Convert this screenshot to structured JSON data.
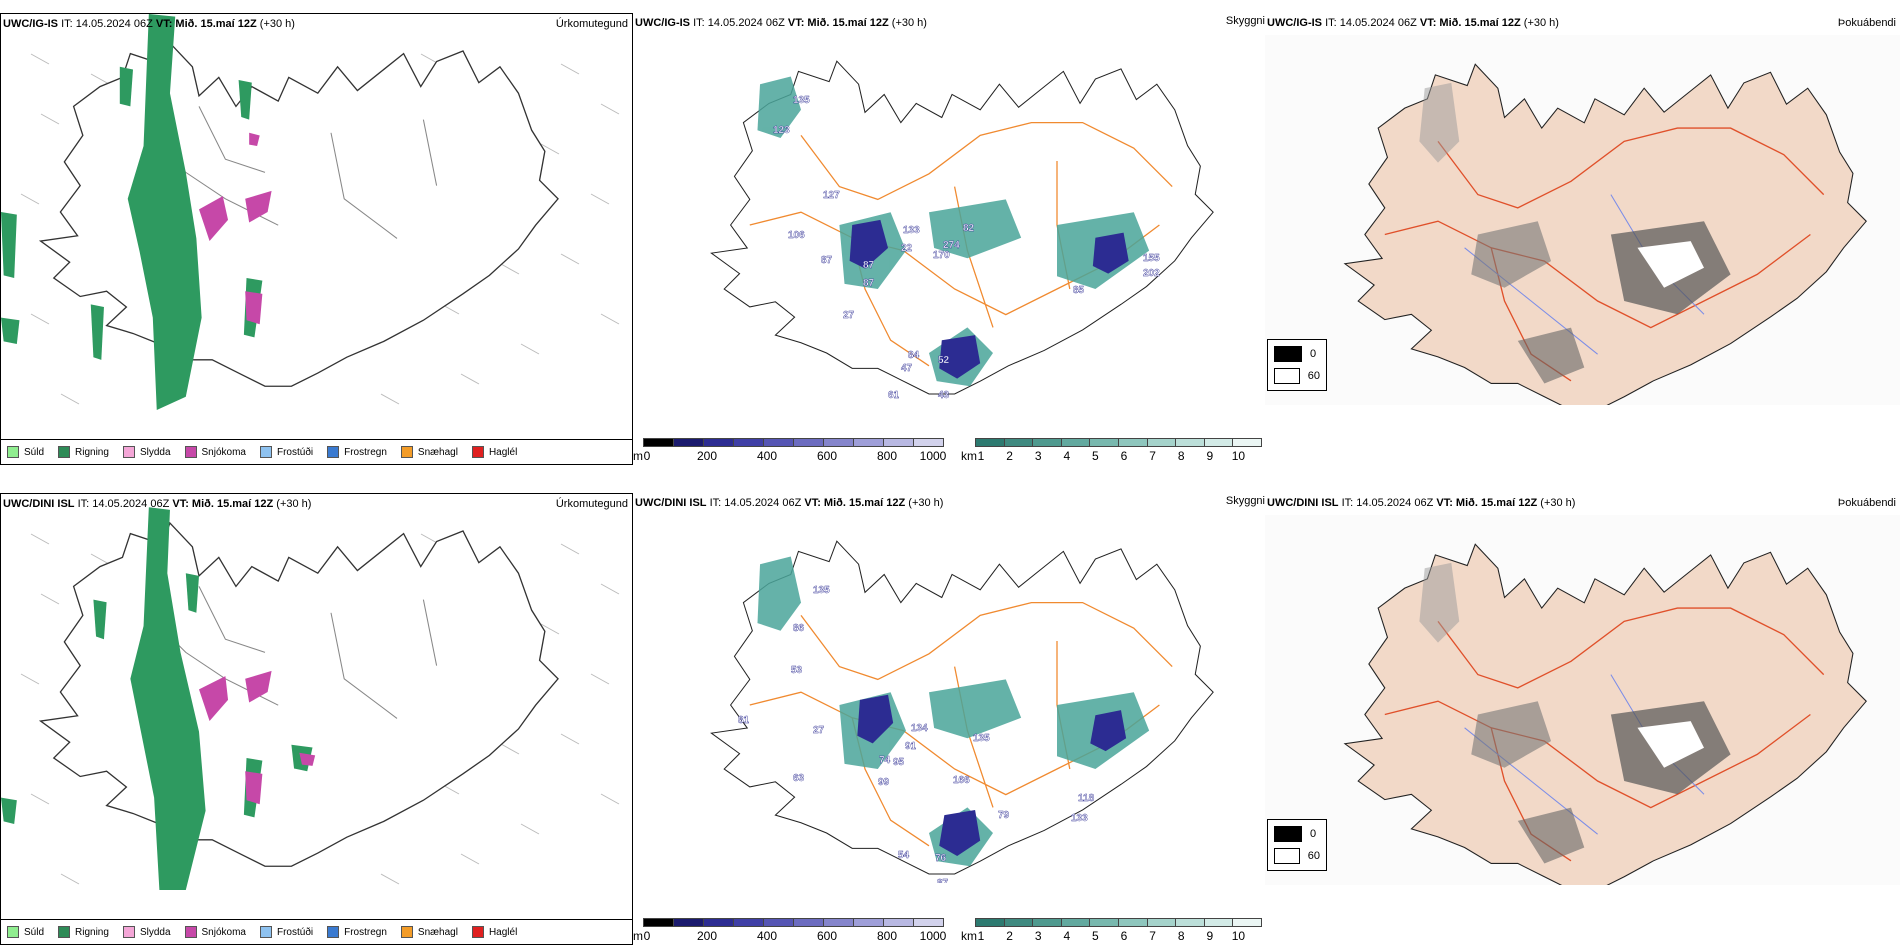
{
  "colors": {
    "land_fog": "#f2d9c8",
    "roads_orange": "#f08a30",
    "roads_red": "#e0502a",
    "rivers_blue": "#7b8de8",
    "precip_green": "#2e9a60",
    "precip_magenta": "#c648a8",
    "vis_teal": "#4aa59a",
    "vis_navy": "#2c2c92"
  },
  "rows": [
    {
      "left": {
        "model": "UWC/IG-IS",
        "it_text": "IT: 14.05.2024 06Z",
        "vt_label": "VT:",
        "vt_value": "Mið. 15.maí 12Z",
        "lead": "(+30 h)",
        "panel_type": "Úrkomutegund"
      },
      "middle": {
        "model": "UWC/IG-IS",
        "it_text": "IT: 14.05.2024 06Z",
        "vt_label": "VT:",
        "vt_value": "Mið. 15.maí 12Z",
        "lead": "(+30 h)",
        "panel_type": "Skyggni",
        "labels": [
          "135",
          "123",
          "127",
          "106",
          "87",
          "133",
          "22",
          "87",
          "87",
          "170",
          "274",
          "82",
          "202",
          "155",
          "85",
          "84",
          "52",
          "47",
          "61",
          "43",
          "27"
        ]
      },
      "right": {
        "model": "UWC/IG-IS",
        "it_text": "IT: 14.05.2024 06Z",
        "vt_label": "VT:",
        "vt_value": "Mið. 15.maí 12Z",
        "lead": "(+30 h)",
        "panel_type": "Þokuábendi"
      }
    },
    {
      "left": {
        "model": "UWC/DINI ISL",
        "it_text": "IT: 14.05.2024 06Z",
        "vt_label": "VT:",
        "vt_value": "Mið. 15.maí 12Z",
        "lead": "(+30 h)",
        "panel_type": "Úrkomutegund"
      },
      "middle": {
        "model": "UWC/DINI ISL",
        "it_text": "IT: 14.05.2024 06Z",
        "vt_label": "VT:",
        "vt_value": "Mið. 15.maí 12Z",
        "lead": "(+30 h)",
        "panel_type": "Skyggni",
        "labels": [
          "135",
          "86",
          "53",
          "81",
          "27",
          "63",
          "134",
          "91",
          "74",
          "95",
          "99",
          "135",
          "166",
          "79",
          "118",
          "133",
          "54",
          "76",
          "87",
          "59"
        ]
      },
      "right": {
        "model": "UWC/DINI ISL",
        "it_text": "IT: 14.05.2024 06Z",
        "vt_label": "VT:",
        "vt_value": "Mið. 15.maí 12Z",
        "lead": "(+30 h)",
        "panel_type": "Þokuábendi"
      }
    }
  ],
  "precip_legend": [
    {
      "label": "Súld",
      "color": "#90ee90"
    },
    {
      "label": "Rigning",
      "color": "#2e8b57"
    },
    {
      "label": "Slydda",
      "color": "#f4a6d7"
    },
    {
      "label": "Snjókoma",
      "color": "#c648a8"
    },
    {
      "label": "Frostúði",
      "color": "#8ec2f0"
    },
    {
      "label": "Frostregn",
      "color": "#3a7ad0"
    },
    {
      "label": "Snæhagl",
      "color": "#f39c28"
    },
    {
      "label": "Haglél",
      "color": "#e02020"
    }
  ],
  "cloud_base_scale": {
    "unit": "m",
    "ticks": [
      "0",
      "200",
      "400",
      "600",
      "800",
      "1000"
    ],
    "colors": [
      "#000000",
      "#1a1a6e",
      "#2c2c92",
      "#3f3fa6",
      "#5555b4",
      "#6c6cc0",
      "#8585cc",
      "#9e9ed8",
      "#b8b8e2",
      "#d2d2ec"
    ]
  },
  "visibility_scale": {
    "unit": "km",
    "ticks": [
      "1",
      "2",
      "3",
      "4",
      "5",
      "6",
      "7",
      "8",
      "9",
      "10"
    ],
    "colors": [
      "#2d7a70",
      "#3f8a80",
      "#4f9a8f",
      "#62a99f",
      "#78b8ae",
      "#8ec6bd",
      "#a5d3cb",
      "#bcdfd9",
      "#d3ebe7",
      "#ebf6f4"
    ]
  },
  "fog_legend": [
    {
      "label": "0",
      "color": "#000000"
    },
    {
      "label": "60",
      "color": "#ffffff"
    }
  ]
}
